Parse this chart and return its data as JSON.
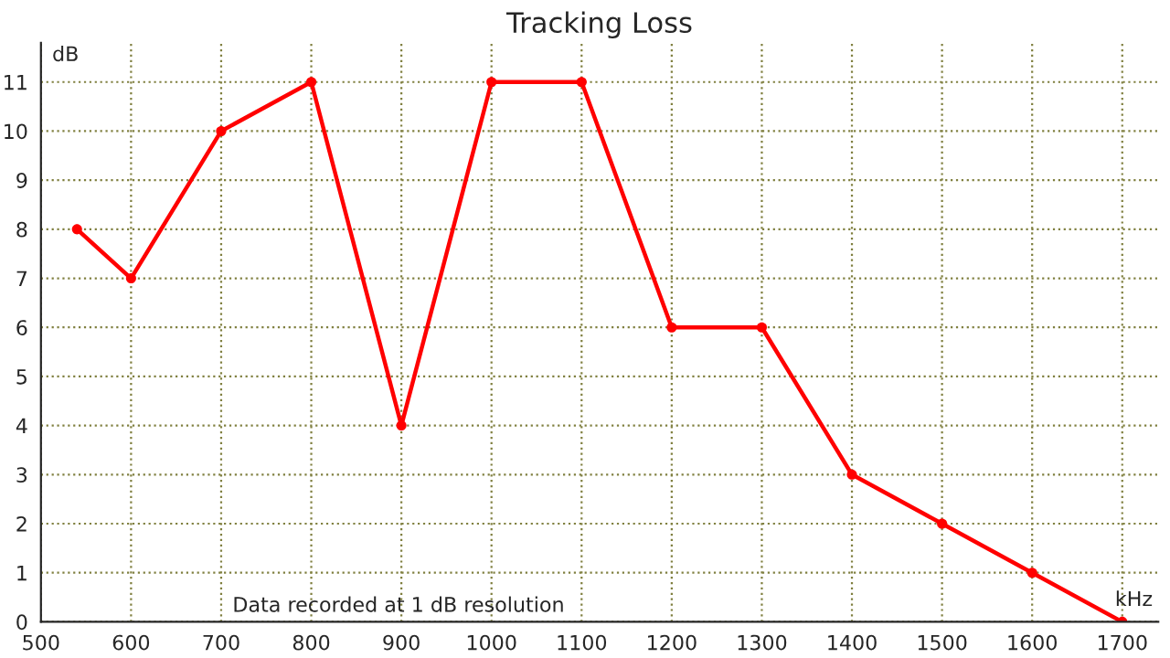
{
  "chart_data": {
    "type": "line",
    "title": "Tracking Loss",
    "xlabel": "kHz",
    "ylabel": "dB",
    "x": [
      540,
      600,
      700,
      800,
      900,
      1000,
      1100,
      1200,
      1300,
      1400,
      1500,
      1600,
      1700
    ],
    "series": [
      {
        "color": "#ff0000",
        "values": [
          8,
          7,
          10,
          11,
          4,
          11,
          11,
          6,
          6,
          3,
          2,
          1,
          0
        ]
      }
    ],
    "xlim": [
      500,
      1740
    ],
    "ylim": [
      0,
      11.8
    ],
    "xticks": [
      500,
      600,
      700,
      800,
      900,
      1000,
      1100,
      1200,
      1300,
      1400,
      1500,
      1600,
      1700
    ],
    "yticks": [
      0,
      1,
      2,
      3,
      4,
      5,
      6,
      7,
      8,
      9,
      10,
      11
    ],
    "grid": true,
    "marker": "circle",
    "line_style": "solid",
    "legend": false,
    "annotations": [
      {
        "text": "Data recorded at 1 dB resolution"
      }
    ]
  }
}
